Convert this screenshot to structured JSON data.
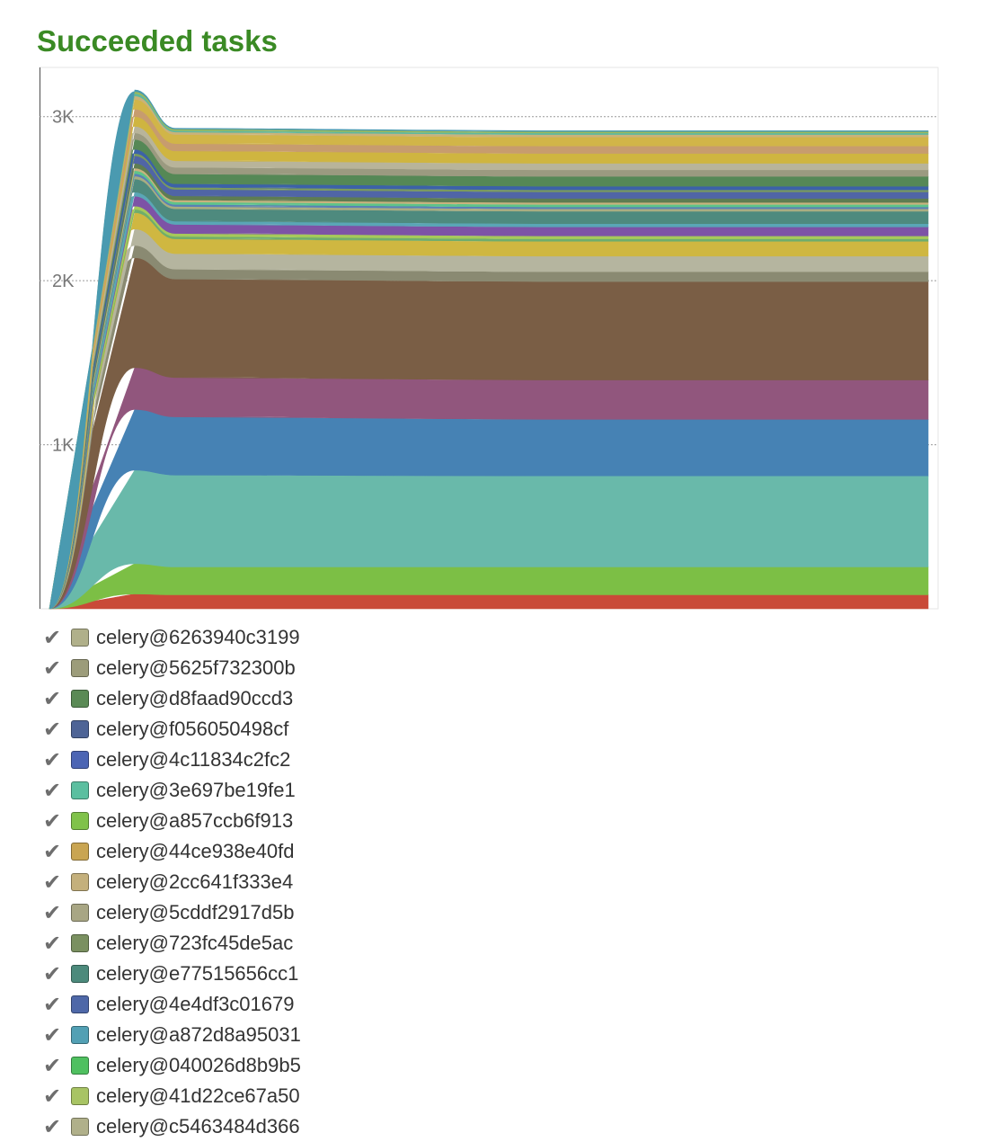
{
  "title": "Succeeded tasks",
  "chart_data": {
    "type": "area",
    "stacked": true,
    "grid": true,
    "y_ticks": [
      {
        "label": "1K",
        "value": 1000
      },
      {
        "label": "2K",
        "value": 2000
      },
      {
        "label": "3K",
        "value": 3000
      }
    ],
    "ylim": [
      0,
      3300
    ],
    "x": [
      0,
      1,
      2,
      3,
      4
    ],
    "layers": [
      {
        "color": "#c94a38",
        "values": [
          0,
          90,
          85,
          85,
          85
        ]
      },
      {
        "color": "#7cbf45",
        "values": [
          0,
          185,
          170,
          170,
          170
        ]
      },
      {
        "color": "#69b9aa",
        "values": [
          0,
          570,
          560,
          555,
          555
        ]
      },
      {
        "color": "#4682b4",
        "values": [
          0,
          370,
          355,
          345,
          345
        ]
      },
      {
        "color": "#91567d",
        "values": [
          0,
          255,
          240,
          240,
          240
        ]
      },
      {
        "color": "#7a5e45",
        "values": [
          0,
          670,
          600,
          600,
          600
        ]
      },
      {
        "color": "#8a8a72",
        "values": [
          0,
          75,
          60,
          60,
          60
        ]
      },
      {
        "color": "#b5b59f",
        "values": [
          0,
          100,
          95,
          95,
          95
        ]
      },
      {
        "color": "#cfb741",
        "values": [
          0,
          100,
          90,
          90,
          90
        ]
      },
      {
        "color": "#6fad6c",
        "values": [
          0,
          20,
          15,
          15,
          15
        ]
      },
      {
        "color": "#a6c95a",
        "values": [
          0,
          20,
          18,
          18,
          18
        ]
      },
      {
        "color": "#7d53a6",
        "values": [
          0,
          60,
          55,
          55,
          55
        ]
      },
      {
        "color": "#5aa6b6",
        "values": [
          0,
          25,
          20,
          20,
          20
        ]
      },
      {
        "color": "#4e8a7e",
        "values": [
          0,
          80,
          75,
          75,
          75
        ]
      },
      {
        "color": "#a8ad82",
        "values": [
          0,
          18,
          15,
          15,
          15
        ]
      },
      {
        "color": "#5a80b5",
        "values": [
          0,
          15,
          12,
          12,
          12
        ]
      },
      {
        "color": "#5ec48a",
        "values": [
          0,
          18,
          15,
          15,
          15
        ]
      },
      {
        "color": "#c9b27e",
        "values": [
          0,
          15,
          12,
          12,
          12
        ]
      },
      {
        "color": "#5e7d52",
        "values": [
          0,
          30,
          25,
          25,
          25
        ]
      },
      {
        "color": "#5065a6",
        "values": [
          0,
          45,
          40,
          40,
          40
        ]
      },
      {
        "color": "#7a9a5e",
        "values": [
          0,
          15,
          12,
          12,
          12
        ]
      },
      {
        "color": "#3c62a8",
        "values": [
          0,
          25,
          22,
          22,
          22
        ]
      },
      {
        "color": "#558856",
        "values": [
          0,
          60,
          60,
          60,
          60
        ]
      },
      {
        "color": "#9b9a80",
        "values": [
          0,
          40,
          40,
          40,
          40
        ]
      },
      {
        "color": "#b8b49a",
        "values": [
          0,
          40,
          40,
          40,
          40
        ]
      },
      {
        "color": "#cfb540",
        "values": [
          0,
          60,
          60,
          60,
          60
        ]
      },
      {
        "color": "#c79c6e",
        "values": [
          0,
          45,
          45,
          45,
          45
        ]
      },
      {
        "color": "#d1b548",
        "values": [
          0,
          60,
          55,
          55,
          55
        ]
      },
      {
        "color": "#c9b27a",
        "values": [
          0,
          20,
          15,
          15,
          15
        ]
      },
      {
        "color": "#5fb89f",
        "values": [
          0,
          15,
          10,
          10,
          10
        ]
      },
      {
        "color": "#9cba5a",
        "values": [
          0,
          12,
          8,
          8,
          8
        ]
      },
      {
        "color": "#4a9ab0",
        "values": [
          0,
          10,
          5,
          5,
          5
        ]
      }
    ],
    "legend": [
      {
        "name": "celery@6263940c3199",
        "color": "#b0b08a"
      },
      {
        "name": "celery@5625f732300b",
        "color": "#9c9c7a"
      },
      {
        "name": "celery@d8faad90ccd3",
        "color": "#5a8a55"
      },
      {
        "name": "celery@f056050498cf",
        "color": "#4e6496"
      },
      {
        "name": "celery@4c11834c2fc2",
        "color": "#4c65b4"
      },
      {
        "name": "celery@3e697be19fe1",
        "color": "#5bbfa0"
      },
      {
        "name": "celery@a857ccb6f913",
        "color": "#80c24a"
      },
      {
        "name": "celery@44ce938e40fd",
        "color": "#c9a552"
      },
      {
        "name": "celery@2cc641f333e4",
        "color": "#c4b07c"
      },
      {
        "name": "celery@5cddf2917d5b",
        "color": "#a8a684"
      },
      {
        "name": "celery@723fc45de5ac",
        "color": "#7a9060"
      },
      {
        "name": "celery@e77515656cc1",
        "color": "#4c8a7c"
      },
      {
        "name": "celery@4e4df3c01679",
        "color": "#4e68a8"
      },
      {
        "name": "celery@a872d8a95031",
        "color": "#52a0b4"
      },
      {
        "name": "celery@040026d8b9b5",
        "color": "#4fc060"
      },
      {
        "name": "celery@41d22ce67a50",
        "color": "#a8c464"
      },
      {
        "name": "celery@c5463484d366",
        "color": "#b0b08a"
      }
    ]
  }
}
